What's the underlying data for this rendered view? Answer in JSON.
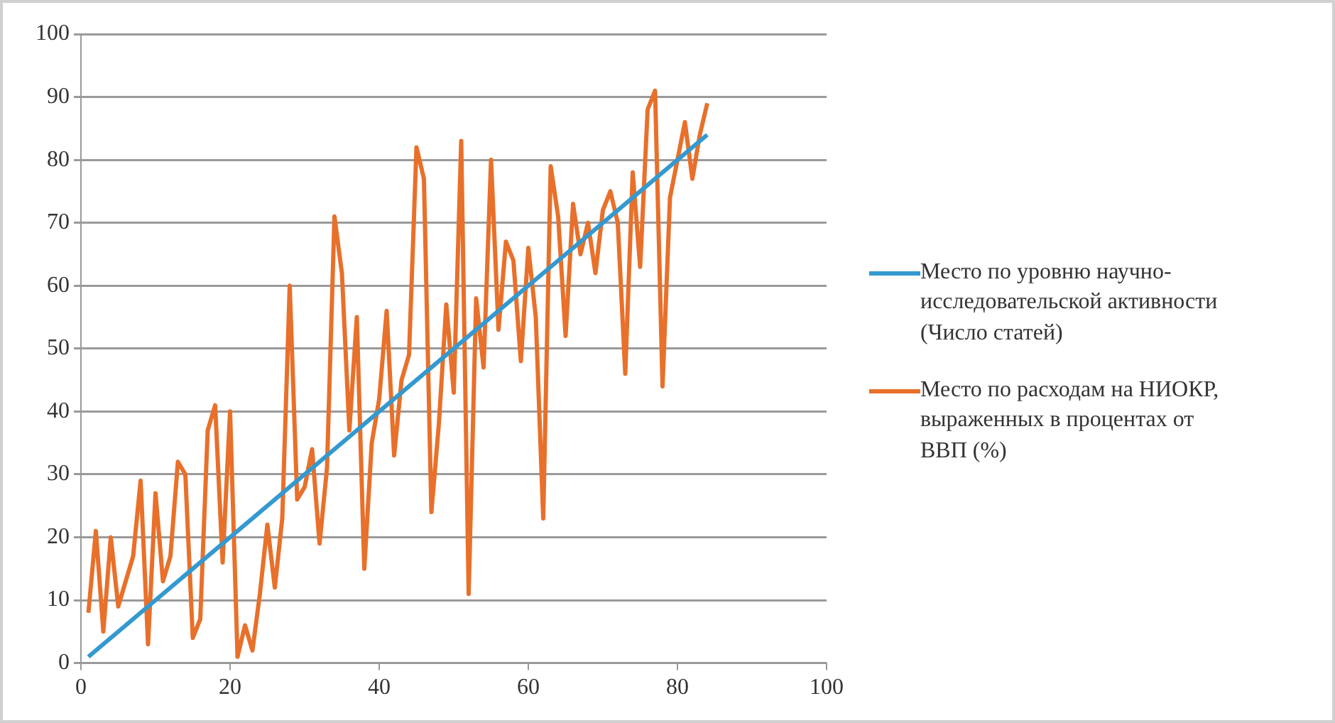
{
  "chart_data": {
    "type": "line",
    "series": [
      {
        "name": "Место по уровню научно-исследовательской активности (Число статей)",
        "color": "#3399d0",
        "x": [
          1,
          84
        ],
        "values": [
          1,
          84
        ]
      },
      {
        "name": "Место по расходам на НИОКР, выраженных в процентах от ВВП (%)",
        "color": "#e8702a",
        "x": [
          1,
          2,
          3,
          4,
          5,
          6,
          7,
          8,
          9,
          10,
          11,
          12,
          13,
          14,
          15,
          16,
          17,
          18,
          19,
          20,
          21,
          22,
          23,
          24,
          25,
          26,
          27,
          28,
          29,
          30,
          31,
          32,
          33,
          34,
          35,
          36,
          37,
          38,
          39,
          40,
          41,
          42,
          43,
          44,
          45,
          46,
          47,
          48,
          49,
          50,
          51,
          52,
          53,
          54,
          55,
          56,
          57,
          58,
          59,
          60,
          61,
          62,
          63,
          64,
          65,
          66,
          67,
          68,
          69,
          70,
          71,
          72,
          73,
          74,
          75,
          76,
          77,
          78,
          79,
          80,
          81,
          82,
          83,
          84
        ],
        "values": [
          8,
          21,
          5,
          20,
          9,
          13,
          17,
          29,
          3,
          27,
          13,
          17,
          32,
          30,
          4,
          7,
          37,
          41,
          16,
          40,
          1,
          6,
          2,
          11,
          22,
          12,
          23,
          60,
          26,
          28,
          34,
          19,
          31,
          71,
          62,
          37,
          55,
          15,
          35,
          42,
          56,
          33,
          45,
          49,
          82,
          77,
          24,
          38,
          57,
          43,
          83,
          11,
          58,
          47,
          80,
          53,
          67,
          64,
          48,
          66,
          55,
          23,
          79,
          71,
          52,
          73,
          65,
          70,
          62,
          72,
          75,
          70,
          46,
          78,
          63,
          88,
          91,
          44,
          74,
          80,
          86,
          77,
          84,
          89
        ]
      }
    ],
    "xlim": [
      0,
      100
    ],
    "xticks": [
      0,
      20,
      40,
      60,
      80,
      100
    ],
    "ylim": [
      0,
      100
    ],
    "yticks": [
      0,
      10,
      20,
      30,
      40,
      50,
      60,
      70,
      80,
      90,
      100
    ],
    "grid": "y",
    "legend": "right",
    "marker": "none",
    "line_style": "solid"
  }
}
